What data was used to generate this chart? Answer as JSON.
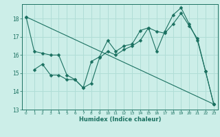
{
  "xlabel": "Humidex (Indice chaleur)",
  "background_color": "#cceee8",
  "line_color": "#1a7060",
  "grid_color": "#b0ddd6",
  "xlim": [
    -0.5,
    23.5
  ],
  "ylim": [
    13,
    18.8
  ],
  "yticks": [
    13,
    14,
    15,
    16,
    17,
    18
  ],
  "xticks": [
    0,
    1,
    2,
    3,
    4,
    5,
    6,
    7,
    8,
    9,
    10,
    11,
    12,
    13,
    14,
    15,
    16,
    17,
    18,
    19,
    20,
    21,
    22,
    23
  ],
  "line1_x": [
    0,
    1,
    2,
    3,
    4,
    5,
    6,
    7,
    8,
    9,
    10,
    11,
    12,
    13,
    14,
    15,
    16,
    17,
    18,
    19,
    20,
    21,
    22,
    23
  ],
  "line1_y": [
    18.1,
    16.2,
    16.1,
    16.0,
    16.0,
    14.9,
    14.65,
    14.2,
    15.65,
    15.9,
    16.8,
    16.2,
    16.5,
    16.6,
    17.35,
    17.5,
    16.2,
    17.3,
    18.2,
    18.6,
    17.7,
    16.8,
    15.1,
    13.3
  ],
  "line2_x": [
    1,
    2,
    3,
    4,
    5,
    6,
    7,
    8,
    9,
    10,
    11,
    12,
    13,
    14,
    15,
    16,
    17,
    18,
    19,
    20,
    21,
    22,
    23
  ],
  "line2_y": [
    15.2,
    15.5,
    14.9,
    14.9,
    14.65,
    14.65,
    14.2,
    14.45,
    15.85,
    16.2,
    16.0,
    16.3,
    16.5,
    16.8,
    17.5,
    17.3,
    17.2,
    17.7,
    18.3,
    17.6,
    16.9,
    15.1,
    13.3
  ],
  "line3_x": [
    0,
    23
  ],
  "line3_y": [
    18.1,
    13.3
  ],
  "markersize": 2.5,
  "linewidth": 0.8
}
